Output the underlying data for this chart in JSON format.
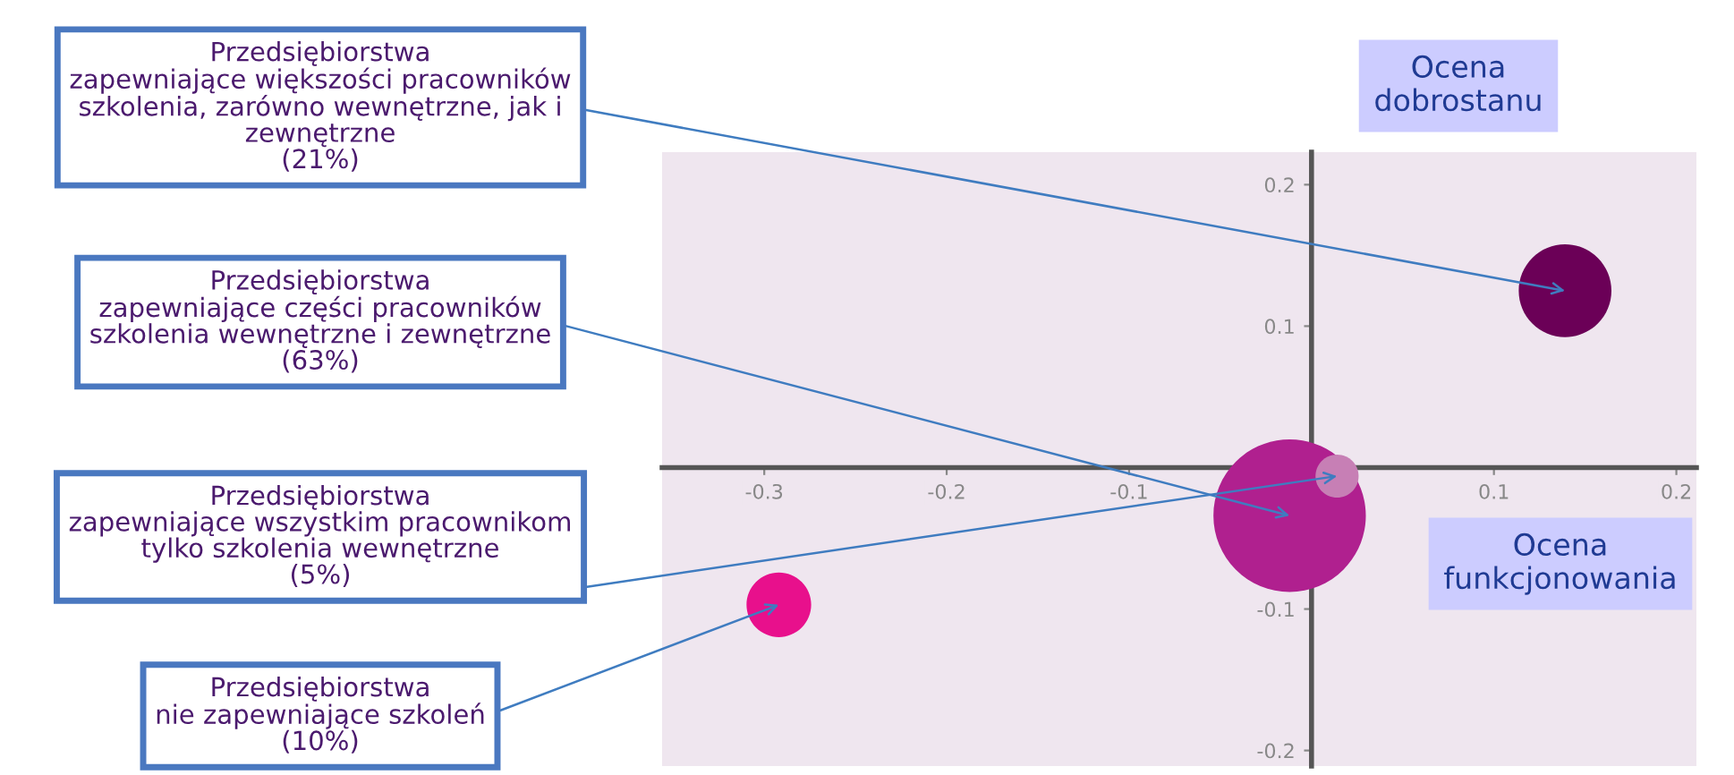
{
  "chart_data": {
    "type": "bubble",
    "xlabel": "Ocena\nfunkcjonowania",
    "ylabel": "Ocena\ndobrostanu",
    "series": [
      {
        "color": "#6b0057",
        "x": [
          0.139
        ],
        "values": [
          0.125
        ],
        "sizes": [
          0.37
        ]
      },
      {
        "color": "#b0208f",
        "x": [
          -0.012
        ],
        "values": [
          -0.034
        ],
        "sizes": [
          1
        ]
      },
      {
        "color": "#c77fb5",
        "x": [
          0.014
        ],
        "values": [
          -0.006
        ],
        "sizes": [
          0.08
        ]
      },
      {
        "color": "#e8108c",
        "x": [
          -0.292
        ],
        "values": [
          -0.097
        ],
        "sizes": [
          0.18
        ]
      }
    ],
    "annotations": [
      {
        "text": "Przedsiębiorstwa\nzapewniające większości pracowników\nszkolenia, zarówno wewnętrzne, jak i\nzewnętrzne\n(21%)",
        "x": 0.139,
        "y": 0.125
      },
      {
        "text": "Przedsiębiorstwa\nzapewniające części pracowników\nszkolenia wewnętrzne i zewnętrzne\n(63%)",
        "x": -0.012,
        "y": -0.034
      },
      {
        "text": "Przedsiębiorstwa\nzapewniające wszystkim pracownikom\ntylko szkolenia wewnętrzne\n(5%)",
        "x": 0.014,
        "y": -0.006
      },
      {
        "text": "Przedsiębiorstwa\nnie zapewniające szkoleń\n(10%)",
        "x": -0.292,
        "y": -0.097
      }
    ],
    "xlim": [
      -0.356,
      0.211
    ],
    "ylim": [
      -0.211,
      0.223
    ],
    "xticks": [
      -0.3,
      -0.2,
      -0.1,
      0.1,
      0.2
    ],
    "yticks": [
      -0.2,
      -0.1,
      0.1,
      0.2
    ],
    "grid": false,
    "legend": false
  }
}
